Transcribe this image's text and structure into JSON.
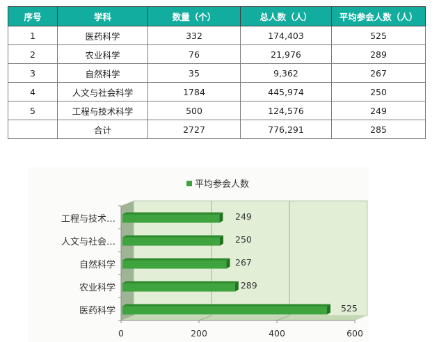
{
  "table": {
    "headers": [
      "序号",
      "学科",
      "数量（个）",
      "总人数（人）",
      "平均参会人数（人）"
    ],
    "rows": [
      {
        "no": "1",
        "subject": "医药科学",
        "count": "332",
        "total": "174,403",
        "avg": "525"
      },
      {
        "no": "2",
        "subject": "农业科学",
        "count": "76",
        "total": "21,976",
        "avg": "289"
      },
      {
        "no": "3",
        "subject": "自然科学",
        "count": "35",
        "total": "9,362",
        "avg": "267"
      },
      {
        "no": "4",
        "subject": "人文与社会科学",
        "count": "1784",
        "total": "445,974",
        "avg": "250"
      },
      {
        "no": "5",
        "subject": "工程与技术科学",
        "count": "500",
        "total": "124,576",
        "avg": "249"
      },
      {
        "no": "",
        "subject": "合计",
        "count": "2727",
        "total": "776,291",
        "avg": "285"
      }
    ],
    "header_color": "#13ada0"
  },
  "chart_data": {
    "type": "bar",
    "orientation": "horizontal",
    "style": "3d",
    "title": "",
    "legend": {
      "entries": [
        "平均参会人数"
      ],
      "position": "top"
    },
    "categories": [
      "医药科学",
      "农业科学",
      "自然科学",
      "人文与社会科学",
      "工程与技术科学"
    ],
    "category_labels_displayed": [
      "医药科学",
      "农业科学",
      "自然科学",
      "人文与社会…",
      "工程与技术…"
    ],
    "series": [
      {
        "name": "平均参会人数",
        "values": [
          525,
          289,
          267,
          250,
          249
        ],
        "color": "#3fa33f"
      }
    ],
    "data_labels": [
      "525",
      "289",
      "267",
      "250",
      "249"
    ],
    "xlabel": "",
    "ylabel": "",
    "xlim": [
      0,
      600
    ],
    "x_ticks": [
      "0",
      "200",
      "400",
      "600"
    ],
    "grid": true,
    "plot_background": "#e2eed6"
  }
}
